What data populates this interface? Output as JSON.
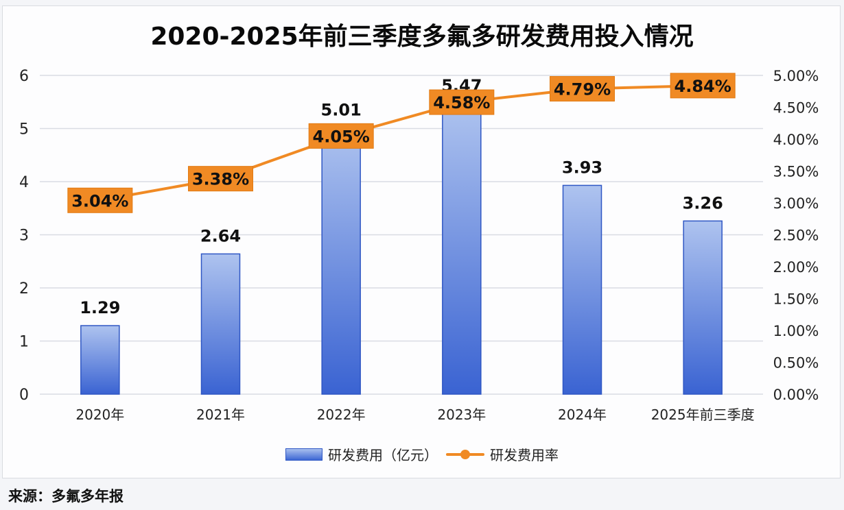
{
  "chart_data": {
    "type": "bar+line",
    "title": "2020-2025年前三季度多氟多研发费用投入情况",
    "categories": [
      "2020年",
      "2021年",
      "2022年",
      "2023年",
      "2024年",
      "2025年前三季度"
    ],
    "series": [
      {
        "name": "研发费用（亿元）",
        "type": "bar",
        "axis": "left",
        "values": [
          1.29,
          2.64,
          5.01,
          5.47,
          3.93,
          3.26
        ],
        "labels": [
          "1.29",
          "2.64",
          "5.01",
          "5.47",
          "3.93",
          "3.26"
        ],
        "color": "#3d67d4"
      },
      {
        "name": "研发费用率",
        "type": "line",
        "axis": "right",
        "values": [
          3.04,
          3.38,
          4.05,
          4.58,
          4.79,
          4.84
        ],
        "labels": [
          "3.04%",
          "3.38%",
          "4.05%",
          "4.58%",
          "4.79%",
          "4.84%"
        ],
        "color": "#f08a24"
      }
    ],
    "left_axis": {
      "ylim": [
        0,
        6
      ],
      "ticks": [
        "0",
        "1",
        "2",
        "3",
        "4",
        "5",
        "6"
      ]
    },
    "right_axis": {
      "ylim": [
        0,
        5
      ],
      "ticks": [
        "0.00%",
        "0.50%",
        "1.00%",
        "1.50%",
        "2.00%",
        "2.50%",
        "3.00%",
        "3.50%",
        "4.00%",
        "4.50%",
        "5.00%"
      ]
    },
    "grid": true,
    "legend_position": "bottom",
    "legend": [
      "研发费用（亿元）",
      "研发费用率"
    ],
    "colors": {
      "bar_top": "#a9c0ee",
      "bar_bottom": "#3d67d4",
      "bar_border": "#2f57c4",
      "line": "#f08a24",
      "label_box": "#f08a24",
      "grid": "#d9dce3"
    }
  },
  "source": "来源：多氟多年报"
}
